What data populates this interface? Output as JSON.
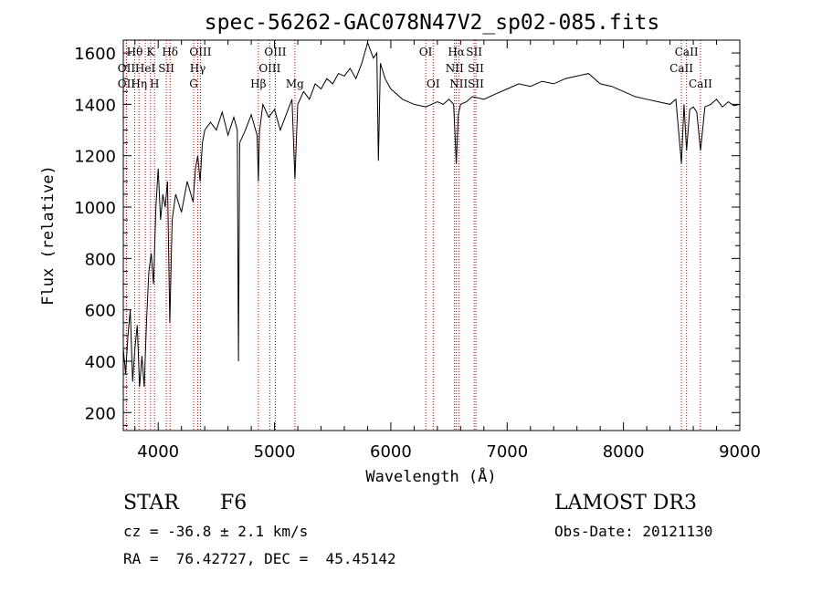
{
  "chart_data": {
    "type": "line",
    "title": "spec-56262-GAC078N47V2_sp02-085.fits",
    "xlabel": "Wavelength (Å)",
    "ylabel": "Flux (relative)",
    "xlim": [
      3700,
      9000
    ],
    "ylim": [
      130,
      1650
    ],
    "x_ticks": [
      4000,
      5000,
      6000,
      7000,
      8000,
      9000
    ],
    "y_ticks": [
      200,
      400,
      600,
      800,
      1000,
      1200,
      1400,
      1600
    ],
    "series": [
      {
        "name": "spectrum",
        "x": [
          3700,
          3720,
          3740,
          3760,
          3780,
          3800,
          3820,
          3840,
          3860,
          3880,
          3900,
          3920,
          3940,
          3960,
          3980,
          4000,
          4020,
          4040,
          4060,
          4080,
          4100,
          4120,
          4150,
          4200,
          4250,
          4300,
          4320,
          4340,
          4360,
          4380,
          4400,
          4450,
          4500,
          4550,
          4600,
          4650,
          4680,
          4690,
          4700,
          4750,
          4800,
          4850,
          4861,
          4870,
          4900,
          4950,
          5000,
          5050,
          5100,
          5150,
          5175,
          5200,
          5250,
          5300,
          5350,
          5400,
          5450,
          5500,
          5550,
          5600,
          5650,
          5700,
          5750,
          5800,
          5850,
          5880,
          5893,
          5910,
          5950,
          6000,
          6050,
          6100,
          6200,
          6300,
          6400,
          6450,
          6500,
          6540,
          6563,
          6580,
          6600,
          6650,
          6700,
          6800,
          6900,
          7000,
          7100,
          7200,
          7300,
          7400,
          7500,
          7600,
          7700,
          7800,
          7900,
          8000,
          8100,
          8200,
          8300,
          8400,
          8450,
          8498,
          8520,
          8542,
          8570,
          8600,
          8630,
          8662,
          8700,
          8750,
          8800,
          8850,
          8900,
          8950,
          9000
        ],
        "y": [
          450,
          350,
          500,
          600,
          320,
          450,
          540,
          300,
          420,
          300,
          560,
          750,
          820,
          700,
          1000,
          1150,
          950,
          1050,
          1000,
          1100,
          550,
          950,
          1050,
          980,
          1100,
          1020,
          1150,
          1200,
          1100,
          1250,
          1300,
          1330,
          1300,
          1370,
          1280,
          1350,
          1300,
          400,
          1250,
          1300,
          1360,
          1280,
          1100,
          1290,
          1400,
          1350,
          1380,
          1300,
          1360,
          1420,
          1110,
          1400,
          1450,
          1420,
          1480,
          1460,
          1500,
          1480,
          1520,
          1510,
          1540,
          1500,
          1560,
          1640,
          1580,
          1600,
          1180,
          1560,
          1500,
          1460,
          1440,
          1420,
          1400,
          1390,
          1410,
          1400,
          1420,
          1400,
          1170,
          1360,
          1400,
          1410,
          1430,
          1420,
          1440,
          1460,
          1480,
          1470,
          1490,
          1480,
          1500,
          1510,
          1520,
          1480,
          1470,
          1450,
          1430,
          1420,
          1410,
          1400,
          1420,
          1170,
          1400,
          1220,
          1380,
          1390,
          1370,
          1220,
          1390,
          1400,
          1420,
          1390,
          1410,
          1395,
          1400
        ]
      }
    ],
    "lines": [
      {
        "label": "Hθ",
        "wavelength": 3798,
        "row": 1,
        "dx": 0
      },
      {
        "label": "OII",
        "wavelength": 3727,
        "row": 2,
        "dx": 0
      },
      {
        "label": "OII",
        "wavelength": 3727,
        "row": 3,
        "dx": 0
      },
      {
        "label": "K",
        "wavelength": 3934,
        "row": 1,
        "dx": 0
      },
      {
        "label": "HeI",
        "wavelength": 3889,
        "row": 2,
        "dx": 0
      },
      {
        "label": "Hη",
        "wavelength": 3835,
        "row": 3,
        "dx": 0
      },
      {
        "label": "H",
        "wavelength": 3969,
        "row": 3,
        "dx": 0
      },
      {
        "label": "SII",
        "wavelength": 4070,
        "row": 2,
        "dx": 0
      },
      {
        "label": "Hδ",
        "wavelength": 4102,
        "row": 1,
        "dx": 0
      },
      {
        "label": "OIII",
        "wavelength": 4363,
        "row": 1,
        "dx": 0
      },
      {
        "label": "Hγ",
        "wavelength": 4340,
        "row": 2,
        "dx": 0
      },
      {
        "label": "G",
        "wavelength": 4305,
        "row": 3,
        "dx": 0
      },
      {
        "label": "Hβ",
        "wavelength": 4861,
        "row": 3,
        "dx": 0
      },
      {
        "label": "OIII",
        "wavelength": 5007,
        "row": 1,
        "dx": 0
      },
      {
        "label": "OIII",
        "wavelength": 4959,
        "row": 2,
        "dx": 0
      },
      {
        "label": "Mg",
        "wavelength": 5175,
        "row": 3,
        "dx": 0
      },
      {
        "label": "OI",
        "wavelength": 6300,
        "row": 1,
        "dx": 0
      },
      {
        "label": "OI",
        "wavelength": 6364,
        "row": 3,
        "dx": 0
      },
      {
        "label": "Hα",
        "wavelength": 6563,
        "row": 1,
        "dx": 0
      },
      {
        "label": "SII",
        "wavelength": 6716,
        "row": 1,
        "dx": 0
      },
      {
        "label": "NII",
        "wavelength": 6548,
        "row": 2,
        "dx": 0
      },
      {
        "label": "NII",
        "wavelength": 6584,
        "row": 3,
        "dx": 0
      },
      {
        "label": "SII",
        "wavelength": 6731,
        "row": 2,
        "dx": 0
      },
      {
        "label": "SII",
        "wavelength": 6731,
        "row": 3,
        "dx": 0
      },
      {
        "label": "CaII",
        "wavelength": 8542,
        "row": 1,
        "dx": 0
      },
      {
        "label": "CaII",
        "wavelength": 8498,
        "row": 2,
        "dx": 0
      },
      {
        "label": "CaII",
        "wavelength": 8662,
        "row": 3,
        "dx": 0
      }
    ]
  },
  "info": {
    "class": "STAR",
    "subclass": "F6",
    "survey": "LAMOST DR3",
    "cz": "cz = -36.8 ± 2.1 km/s",
    "obs_date": "Obs-Date: 20121130",
    "coords": "RA =  76.42727, DEC =  45.45142"
  },
  "colors": {
    "spectrum": "#000000",
    "line_marker": "#c00000"
  }
}
